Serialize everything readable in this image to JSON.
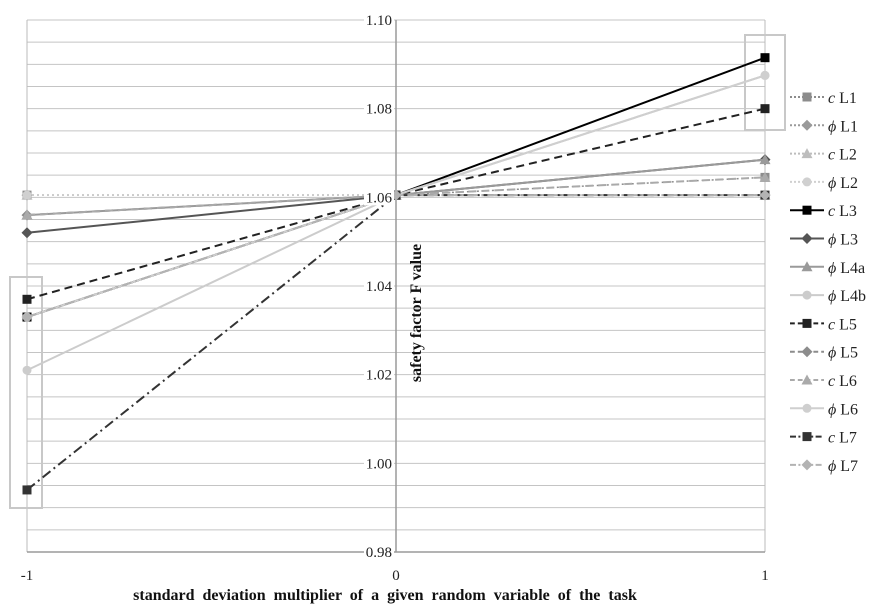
{
  "chart_data": {
    "type": "line",
    "x": [
      -1,
      0,
      1
    ],
    "x_ticks": [
      "-1",
      "0",
      "1"
    ],
    "y_ticks": [
      "0.98",
      "1.00",
      "1.02",
      "1.04",
      "1.06",
      "1.08",
      "1.10"
    ],
    "ylim": [
      0.98,
      1.1
    ],
    "xlim": [
      -1,
      1
    ],
    "xlabel": "standard deviation multiplier of a given random variable of the task",
    "ylabel": "safety factor F value",
    "grid": true,
    "legend_position": "right",
    "series": [
      {
        "name": "c L1",
        "values": [
          1.0605,
          1.0605,
          1.0645
        ],
        "color": "#8c8c8c",
        "dash": "2,3",
        "marker": "square",
        "width": 1.5
      },
      {
        "name": "ϕ L1",
        "values": [
          1.0605,
          1.0605,
          1.0605
        ],
        "color": "#9a9a9a",
        "dash": "2,3",
        "marker": "diamond",
        "width": 1.5
      },
      {
        "name": "c L2",
        "values": [
          1.0605,
          1.0605,
          1.0605
        ],
        "color": "#bdbdbd",
        "dash": "2,3",
        "marker": "triangle",
        "width": 1.5
      },
      {
        "name": "ϕ L2",
        "values": [
          1.0605,
          1.0605,
          1.0605
        ],
        "color": "#d0d0d0",
        "dash": "2,3",
        "marker": "circle",
        "width": 1.5
      },
      {
        "name": "c L3",
        "values": [
          1.033,
          1.0605,
          1.0915
        ],
        "color": "#000000",
        "dash": "",
        "marker": "square",
        "width": 2
      },
      {
        "name": "ϕ L3",
        "values": [
          1.052,
          1.0605,
          1.0685
        ],
        "color": "#555555",
        "dash": "",
        "marker": "diamond",
        "width": 2
      },
      {
        "name": "ϕ L4a",
        "values": [
          1.056,
          1.0605,
          1.0685
        ],
        "color": "#9a9a9a",
        "dash": "",
        "marker": "triangle",
        "width": 2
      },
      {
        "name": "ϕ L4b",
        "values": [
          1.021,
          1.0605,
          1.0875
        ],
        "color": "#cccccc",
        "dash": "",
        "marker": "circle",
        "width": 2
      },
      {
        "name": "c L5",
        "values": [
          1.037,
          1.0605,
          1.08
        ],
        "color": "#222222",
        "dash": "8,5",
        "marker": "square",
        "width": 2
      },
      {
        "name": "ϕ L5",
        "values": [
          1.056,
          1.0605,
          1.0605
        ],
        "color": "#8c8c8c",
        "dash": "8,5",
        "marker": "diamond",
        "width": 2
      },
      {
        "name": "c L6",
        "values": [
          1.056,
          1.0605,
          1.0645
        ],
        "color": "#aaaaaa",
        "dash": "8,5",
        "marker": "triangle",
        "width": 2
      },
      {
        "name": "ϕ L6",
        "values": [
          1.033,
          1.0605,
          1.0875
        ],
        "color": "#cfcfcf",
        "dash": "",
        "marker": "circle",
        "width": 2
      },
      {
        "name": "c L7",
        "values": [
          0.994,
          1.0605,
          1.0605
        ],
        "color": "#333333",
        "dash": "10,4,2,4",
        "marker": "square",
        "width": 2
      },
      {
        "name": "ϕ L7",
        "values": [
          1.033,
          1.0605,
          1.0605
        ],
        "color": "#b3b3b3",
        "dash": "10,4,2,4",
        "marker": "diamond",
        "width": 2
      }
    ]
  }
}
